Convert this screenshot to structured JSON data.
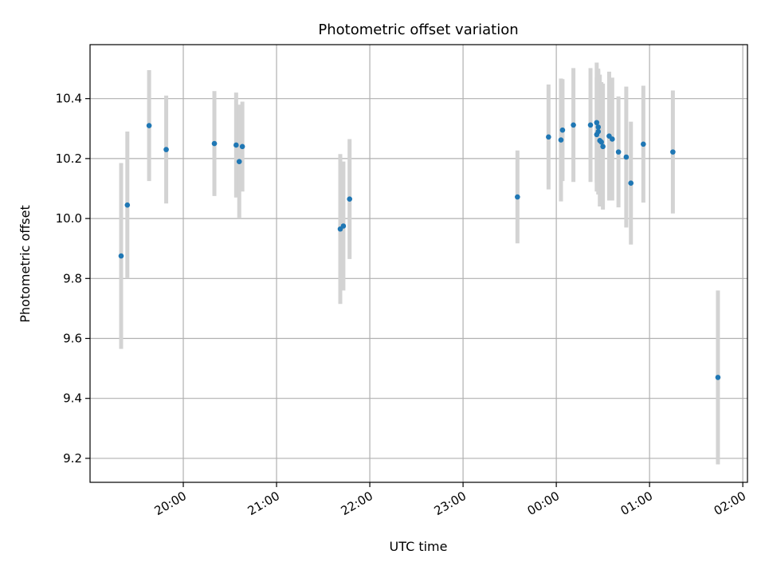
{
  "chart_data": {
    "type": "scatter",
    "title": "Photometric offset variation",
    "xlabel": "UTC time",
    "ylabel": "Photometric offset",
    "x_tick_labels": [
      "20:00",
      "21:00",
      "22:00",
      "23:00",
      "00:00",
      "01:00",
      "02:00"
    ],
    "y_ticks": [
      9.2,
      9.4,
      9.6,
      9.8,
      10.0,
      10.2,
      10.4
    ],
    "y_tick_labels": [
      "9.2",
      "9.4",
      "9.6",
      "9.8",
      "10.0",
      "10.2",
      "10.4"
    ],
    "xlim": [
      "19:00",
      "02:03"
    ],
    "ylim": [
      9.12,
      10.58
    ],
    "grid": true,
    "point_color": "#1f77b4",
    "errorbar_color": "#d3d3d3",
    "series": [
      {
        "points": [
          {
            "t": "19:20",
            "y": 9.875,
            "err": 0.31
          },
          {
            "t": "19:24",
            "y": 10.045,
            "err": 0.245
          },
          {
            "t": "19:38",
            "y": 10.31,
            "err": 0.185
          },
          {
            "t": "19:49",
            "y": 10.23,
            "err": 0.18
          },
          {
            "t": "20:20",
            "y": 10.25,
            "err": 0.175
          },
          {
            "t": "20:34",
            "y": 10.245,
            "err": 0.175
          },
          {
            "t": "20:36",
            "y": 10.19,
            "err": 0.19
          },
          {
            "t": "20:38",
            "y": 10.24,
            "err": 0.15
          },
          {
            "t": "21:41",
            "y": 9.965,
            "err": 0.25
          },
          {
            "t": "21:43",
            "y": 9.975,
            "err": 0.215
          },
          {
            "t": "21:47",
            "y": 10.065,
            "err": 0.2
          },
          {
            "t": "23:35",
            "y": 10.072,
            "err": 0.155
          },
          {
            "t": "23:55",
            "y": 10.272,
            "err": 0.175
          },
          {
            "t": "00:03",
            "y": 10.262,
            "err": 0.205
          },
          {
            "t": "00:04",
            "y": 10.295,
            "err": 0.17
          },
          {
            "t": "00:11",
            "y": 10.312,
            "err": 0.19
          },
          {
            "t": "00:22",
            "y": 10.312,
            "err": 0.19
          },
          {
            "t": "00:26",
            "y": 10.32,
            "err": 0.2
          },
          {
            "t": "00:26",
            "y": 10.28,
            "err": 0.19
          },
          {
            "t": "00:27",
            "y": 10.29,
            "err": 0.21
          },
          {
            "t": "00:27",
            "y": 10.305,
            "err": 0.19
          },
          {
            "t": "00:28",
            "y": 10.26,
            "err": 0.22
          },
          {
            "t": "00:29",
            "y": 10.255,
            "err": 0.2
          },
          {
            "t": "00:30",
            "y": 10.24,
            "err": 0.21
          },
          {
            "t": "00:34",
            "y": 10.275,
            "err": 0.215
          },
          {
            "t": "00:36",
            "y": 10.265,
            "err": 0.205
          },
          {
            "t": "00:40",
            "y": 10.222,
            "err": 0.185
          },
          {
            "t": "00:45",
            "y": 10.205,
            "err": 0.235
          },
          {
            "t": "00:48",
            "y": 10.118,
            "err": 0.205
          },
          {
            "t": "00:56",
            "y": 10.248,
            "err": 0.195
          },
          {
            "t": "01:15",
            "y": 10.222,
            "err": 0.205
          },
          {
            "t": "01:44",
            "y": 9.47,
            "err": 0.29
          }
        ]
      }
    ]
  }
}
